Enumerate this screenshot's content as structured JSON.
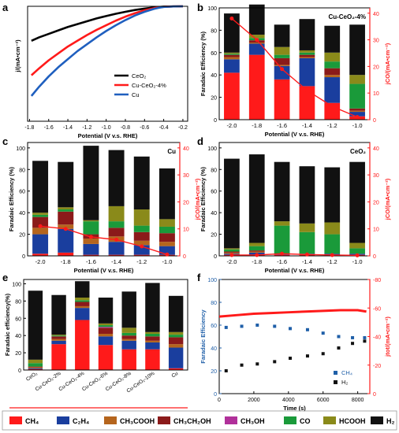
{
  "colors": {
    "CH4": "#ff1a1a",
    "C2H4": "#1a3e9e",
    "CH3COOH": "#b5651d",
    "CH3CH2OH": "#8b1a1a",
    "CH3OH": "#b0309a",
    "CO": "#1a9a3a",
    "HCOOH": "#8a8a1a",
    "H2": "#111111",
    "jco": "#ff1a1a",
    "cu": "#1f5fbf",
    "cuceo2": "#ff1a1a",
    "ceo2": "#000000",
    "fe_ch4": "#1f5fa8",
    "fe_h2": "#111111"
  },
  "legend_bottom": {
    "items": [
      {
        "key": "CH4",
        "label": "CH₄"
      },
      {
        "key": "C2H4",
        "label": "C₂H₄"
      },
      {
        "key": "CH3COOH",
        "label": "CH₃COOH"
      },
      {
        "key": "CH3CH2OH",
        "label": "CH₃CH₂OH"
      },
      {
        "key": "CH3OH",
        "label": "CH₃OH"
      },
      {
        "key": "CO",
        "label": "CO"
      },
      {
        "key": "HCOOH",
        "label": "HCOOH"
      },
      {
        "key": "H2",
        "label": "H₂"
      }
    ]
  },
  "chart_data": [
    {
      "panel": "a",
      "type": "line",
      "xlabel": "Potential (V v.s. RHE)",
      "ylabel": "j/(mA•cm⁻²)",
      "xlim": [
        -1.82,
        -0.15
      ],
      "ylim": [
        -100,
        0
      ],
      "xticks": [
        -1.8,
        -1.6,
        -1.4,
        -1.2,
        -1.0,
        -0.8,
        -0.6,
        -0.4,
        -0.2
      ],
      "xtick_labels": [
        "-1.8",
        "-1.6",
        "-1.4",
        "-1.2",
        "-1.0",
        "-0.8",
        "-0.6",
        "-0.4",
        "-0.2"
      ],
      "legend_position": "right",
      "series": [
        {
          "name": "CeO₂",
          "key": "ceo2",
          "x": [
            -1.78,
            -1.7,
            -1.6,
            -1.5,
            -1.4,
            -1.3,
            -1.2,
            -1.1,
            -1.0,
            -0.9,
            -0.8,
            -0.7,
            -0.6,
            -0.5,
            -0.45,
            -0.4,
            -0.3,
            -0.2
          ],
          "y": [
            -30,
            -27,
            -24,
            -21,
            -18,
            -15.5,
            -13,
            -10.5,
            -8.5,
            -6.5,
            -4.8,
            -3.2,
            -2,
            -1,
            -0.6,
            -0.3,
            -0.1,
            0
          ]
        },
        {
          "name": "Cu-CeO₂-4%",
          "key": "cuceo2",
          "x": [
            -1.78,
            -1.7,
            -1.6,
            -1.5,
            -1.4,
            -1.3,
            -1.2,
            -1.1,
            -1.0,
            -0.9,
            -0.8,
            -0.7,
            -0.6,
            -0.5,
            -0.45,
            -0.4,
            -0.3,
            -0.2
          ],
          "y": [
            -60,
            -54,
            -47,
            -41,
            -35,
            -30,
            -25,
            -20.5,
            -16.5,
            -12.5,
            -9,
            -6,
            -3.5,
            -1.6,
            -1,
            -0.5,
            -0.1,
            0
          ]
        },
        {
          "name": "Cu",
          "key": "cu",
          "x": [
            -1.78,
            -1.7,
            -1.6,
            -1.5,
            -1.4,
            -1.3,
            -1.2,
            -1.1,
            -1.0,
            -0.9,
            -0.8,
            -0.7,
            -0.6,
            -0.5,
            -0.45,
            -0.4,
            -0.3,
            -0.2
          ],
          "y": [
            -78,
            -70,
            -61,
            -53,
            -46,
            -39,
            -33,
            -27,
            -21.5,
            -16.5,
            -12,
            -8,
            -4.8,
            -2.2,
            -1.3,
            -0.6,
            -0.1,
            0
          ]
        }
      ]
    },
    {
      "panel": "b",
      "type": "bar",
      "stacked": true,
      "annotation": "Cu-CeO₂-4%",
      "xlabel": "Potential (V v.s. RHE)",
      "ylabel": "Faradaic Efficiency (%)",
      "ylabel_right": "jCO/(mA•cm⁻²)",
      "ylim": [
        0,
        100
      ],
      "yticks": [
        0,
        20,
        40,
        60,
        80,
        100
      ],
      "ylim_right": [
        0,
        42
      ],
      "yticks_right": [
        0,
        10,
        20,
        30,
        40
      ],
      "categories": [
        "-2.0",
        "-1.8",
        "-1.6",
        "-1.4",
        "-1.2",
        "-1.0"
      ],
      "stacks": {
        "CH4": [
          42,
          58,
          36,
          30,
          15,
          3
        ],
        "C2H4": [
          12,
          10,
          12,
          25,
          23,
          4
        ],
        "CH3COOH": [
          2,
          1,
          1,
          1,
          2,
          1
        ],
        "CH3CH2OH": [
          2,
          2,
          6,
          2,
          6,
          2
        ],
        "CH3OH": [
          0,
          0,
          0,
          0,
          0,
          0
        ],
        "CO": [
          1,
          2,
          3,
          2,
          6,
          22
        ],
        "HCOOH": [
          1,
          3,
          7,
          2,
          8,
          8
        ],
        "H2": [
          35,
          27,
          20,
          28,
          24,
          45
        ]
      },
      "line": {
        "name": "jCO",
        "x": [
          "-2.0",
          "-1.8",
          "-1.6",
          "-1.4",
          "-1.2",
          "-1.0"
        ],
        "y": [
          38,
          30,
          19,
          11,
          5,
          1
        ]
      }
    },
    {
      "panel": "c",
      "type": "bar",
      "stacked": true,
      "annotation": "Cu",
      "xlabel": "Potential (V v.s. RHE)",
      "ylabel": "Faradaic Efficiency (%)",
      "ylabel_right": "jCO/(mA•cm⁻²)",
      "ylim": [
        0,
        105
      ],
      "yticks": [
        0,
        20,
        40,
        60,
        80,
        100
      ],
      "ylim_right": [
        0,
        42
      ],
      "yticks_right": [
        0,
        10,
        20,
        30,
        40
      ],
      "categories": [
        "-2.0",
        "-1.8",
        "-1.6",
        "-1.4",
        "-1.2",
        "-1.0"
      ],
      "stacks": {
        "CH4": [
          2,
          3,
          1,
          1,
          1,
          1
        ],
        "C2H4": [
          18,
          22,
          10,
          12,
          9,
          8
        ],
        "CH3COOH": [
          6,
          4,
          5,
          5,
          4,
          4
        ],
        "CH3CH2OH": [
          10,
          12,
          4,
          8,
          8,
          8
        ],
        "CH3OH": [
          0,
          0,
          0,
          0,
          0,
          0
        ],
        "CO": [
          2,
          2,
          12,
          6,
          6,
          6
        ],
        "HCOOH": [
          2,
          2,
          1,
          14,
          15,
          7
        ],
        "H2": [
          48,
          42,
          69,
          52,
          49,
          47
        ]
      },
      "line": {
        "name": "jCO",
        "x": [
          "-2.0",
          "-1.8",
          "-1.6",
          "-1.4",
          "-1.2",
          "-1.0"
        ],
        "y": [
          11,
          10,
          7,
          6,
          3.5,
          0.5
        ]
      }
    },
    {
      "panel": "d",
      "type": "bar",
      "stacked": true,
      "annotation": "CeO₂",
      "xlabel": "Potential (V v.s. RHE)",
      "ylabel": "Faradaic Efficiency (%)",
      "ylabel_right": "jCO/(mA•cm⁻²)",
      "ylim": [
        0,
        105
      ],
      "yticks": [
        0,
        20,
        40,
        60,
        80,
        100
      ],
      "ylim_right": [
        0,
        42
      ],
      "yticks_right": [
        0,
        10,
        20,
        30,
        40
      ],
      "categories": [
        "-2.0",
        "-1.8",
        "-1.6",
        "-1.4",
        "-1.2",
        "-1.0"
      ],
      "stacks": {
        "CH4": [
          1,
          1,
          1,
          1,
          1,
          1
        ],
        "C2H4": [
          1,
          2,
          1,
          1,
          1,
          1
        ],
        "CH3COOH": [
          1,
          1,
          0,
          0,
          0,
          0
        ],
        "CH3CH2OH": [
          1,
          1,
          0,
          0,
          0,
          0
        ],
        "CH3OH": [
          0,
          0,
          0,
          0,
          0,
          0
        ],
        "CO": [
          2,
          4,
          26,
          20,
          18,
          5
        ],
        "HCOOH": [
          1,
          3,
          4,
          8,
          11,
          5
        ],
        "H2": [
          83,
          82,
          55,
          53,
          51,
          75
        ]
      },
      "line": {
        "name": "jCO",
        "x": [
          "-2.0",
          "-1.8",
          "-1.6",
          "-1.4",
          "-1.2",
          "-1.0"
        ],
        "y": [
          0.3,
          0.3,
          0.8,
          0.5,
          0.3,
          0.2
        ]
      }
    },
    {
      "panel": "e",
      "type": "bar",
      "stacked": true,
      "ylabel": "Faradaic efficiency(%)",
      "ylim": [
        0,
        105
      ],
      "yticks": [
        0,
        20,
        40,
        60,
        80,
        100
      ],
      "categories": [
        "CeO₂",
        "Cu-CeO₂-2%",
        "Cu-CeO₂-4%",
        "Cu-CeO₂-6%",
        "Cu-CeO₂-8%",
        "Cu-CeO₂-10%",
        "Cu"
      ],
      "stacks": {
        "CH4": [
          1,
          30,
          58,
          29,
          24,
          24,
          2
        ],
        "C2H4": [
          1,
          4,
          14,
          10,
          10,
          8,
          24
        ],
        "CH3COOH": [
          1,
          2,
          2,
          3,
          2,
          2,
          4
        ],
        "CH3CH2OH": [
          1,
          3,
          5,
          7,
          4,
          5,
          8
        ],
        "CH3OH": [
          0,
          0,
          0,
          1,
          0,
          0,
          0
        ],
        "CO": [
          4,
          1,
          2,
          2,
          3,
          3,
          3
        ],
        "HCOOH": [
          4,
          1,
          3,
          2,
          6,
          2,
          3
        ],
        "H2": [
          80,
          46,
          19,
          30,
          42,
          57,
          42
        ]
      }
    },
    {
      "panel": "f",
      "type": "scatter",
      "xlabel": "Time (s)",
      "ylabel": "Faradaic Efficiency",
      "ylabel_right": "jtot/(mA•cm⁻²)",
      "xlim": [
        0,
        8700
      ],
      "xticks": [
        0,
        2000,
        4000,
        6000,
        8000
      ],
      "ylim": [
        0,
        100
      ],
      "yticks": [
        0,
        20,
        40,
        60,
        80,
        100
      ],
      "ylim_right": [
        0,
        -80
      ],
      "yticks_right": [
        0,
        -20,
        -40,
        -60,
        -80
      ],
      "legend_position": "bottom-right",
      "series": [
        {
          "name": "CH₄",
          "key": "fe_ch4",
          "x": [
            400,
            1300,
            2200,
            3200,
            4100,
            5100,
            6000,
            6900,
            7700,
            8400
          ],
          "y": [
            58,
            59,
            60,
            59,
            57,
            56,
            53,
            50,
            49,
            49
          ]
        },
        {
          "name": "H₂",
          "key": "fe_h2",
          "x": [
            400,
            1300,
            2200,
            3200,
            4100,
            5100,
            6000,
            6900,
            7700,
            8400
          ],
          "y": [
            20,
            25,
            26,
            28,
            31,
            33,
            35,
            40,
            44,
            46
          ]
        },
        {
          "name": "jtot",
          "key": "jco",
          "line": true,
          "x": [
            0,
            1000,
            2000,
            3000,
            4000,
            5000,
            6000,
            7000,
            8000,
            8500
          ],
          "y": [
            -54,
            -55,
            -56,
            -56.5,
            -57,
            -57.5,
            -58,
            -58.5,
            -58.5,
            -57.5
          ]
        }
      ]
    }
  ]
}
